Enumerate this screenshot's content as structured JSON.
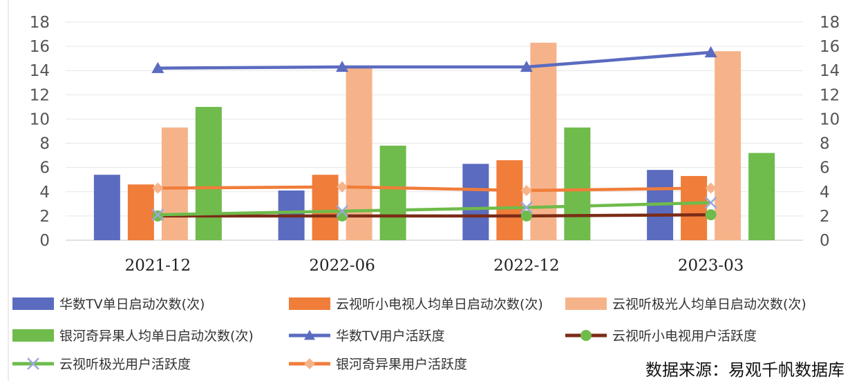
{
  "chart_data": {
    "type": "bar",
    "categories": [
      "2021-12",
      "2022-06",
      "2022-12",
      "2023-03"
    ],
    "y_left_ticks": [
      "0",
      "2",
      "4",
      "6",
      "8",
      "10",
      "12",
      "14",
      "16",
      "18"
    ],
    "y_right_ticks": [
      "0",
      "2",
      "4",
      "6",
      "8",
      "10",
      "12",
      "14",
      "16",
      "18"
    ],
    "ylim": [
      0,
      18
    ],
    "y2lim": [
      0,
      18
    ],
    "grid": true,
    "legend_position": "bottom",
    "bar_series": [
      {
        "name": "华数TV单日启动次数(次)",
        "color": "#5b6bbf",
        "values": [
          5.4,
          4.1,
          6.3,
          5.8
        ]
      },
      {
        "name": "云视听小电视人均单日启动次数(次)",
        "color": "#f07d3a",
        "values": [
          4.6,
          5.4,
          6.6,
          5.3
        ]
      },
      {
        "name": "云视听极光人均单日启动次数(次)",
        "color": "#f6b38a",
        "values": [
          9.3,
          14.3,
          16.3,
          15.6
        ]
      },
      {
        "name": "银河奇异果人均单日启动次数(次)",
        "color": "#6fbb4b",
        "values": [
          11.0,
          7.8,
          9.3,
          7.2
        ]
      }
    ],
    "line_series": [
      {
        "name": "华数TV用户活跃度",
        "color": "#5b6bbf",
        "marker": "triangle",
        "values": [
          14.2,
          14.3,
          14.3,
          15.5
        ]
      },
      {
        "name": "云视听小电视用户活跃度",
        "color": "#7b2c16",
        "marker": "circle",
        "values": [
          2.0,
          2.0,
          2.0,
          2.1
        ]
      },
      {
        "name": "云视听极光用户活跃度",
        "color": "#6fbb4b",
        "marker": "x",
        "values": [
          2.1,
          2.4,
          2.7,
          3.1
        ]
      },
      {
        "name": "银河奇异果用户活跃度",
        "color": "#f07d3a",
        "marker": "diamond",
        "values": [
          4.3,
          4.4,
          4.1,
          4.3
        ]
      }
    ],
    "source_note": "数据来源：易观千帆数据库"
  }
}
